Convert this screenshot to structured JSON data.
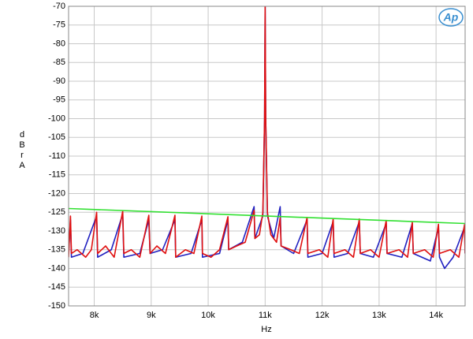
{
  "chart_data": {
    "type": "line",
    "logo": "Ap",
    "xlabel": "Hz",
    "ylabel": "dBr A",
    "xlim": [
      7550,
      14510
    ],
    "ylim": [
      -150,
      -70
    ],
    "xticks": [
      {
        "value": 8000,
        "label": "8k"
      },
      {
        "value": 9000,
        "label": "9k"
      },
      {
        "value": 10000,
        "label": "10k"
      },
      {
        "value": 11000,
        "label": "11k"
      },
      {
        "value": 12000,
        "label": "12k"
      },
      {
        "value": 13000,
        "label": "13k"
      },
      {
        "value": 14000,
        "label": "14k"
      }
    ],
    "yticks": [
      -70,
      -75,
      -80,
      -85,
      -90,
      -95,
      -100,
      -105,
      -110,
      -115,
      -120,
      -125,
      -130,
      -135,
      -140,
      -145,
      -150
    ],
    "grid": true,
    "series": [
      {
        "color": "#2020c0",
        "x": [
          7550,
          7583,
          7600,
          7800,
          8042,
          8060,
          8300,
          8500,
          8520,
          8800,
          8958,
          8980,
          9200,
          9417,
          9430,
          9700,
          9889,
          9900,
          10200,
          10347,
          10360,
          10600,
          10806,
          10820,
          10960,
          10990,
          11000,
          11010,
          11040,
          11150,
          11264,
          11280,
          11500,
          11736,
          11750,
          12000,
          12194,
          12210,
          12450,
          12653,
          12670,
          12900,
          13125,
          13140,
          13400,
          13583,
          13600,
          13900,
          14042,
          14060,
          14150,
          14300,
          14500,
          14510
        ],
        "values": [
          -136,
          -127,
          -137,
          -136,
          -126,
          -137,
          -135,
          -125.5,
          -137,
          -136,
          -127,
          -136,
          -135,
          -127,
          -137,
          -136,
          -127,
          -137,
          -136,
          -127,
          -135,
          -133,
          -123.5,
          -132,
          -126,
          -100,
          -70,
          -100,
          -126,
          -132,
          -123.5,
          -134,
          -136,
          -127,
          -137,
          -136,
          -127.5,
          -137,
          -136,
          -127.5,
          -136,
          -137,
          -128,
          -136,
          -137,
          -128,
          -136,
          -138,
          -129,
          -137,
          -140,
          -137,
          -129,
          -136
        ]
      },
      {
        "color": "#e01010",
        "x": [
          7550,
          7583,
          7600,
          7700,
          7850,
          7950,
          8042,
          8060,
          8200,
          8350,
          8500,
          8520,
          8650,
          8800,
          8958,
          8980,
          9100,
          9250,
          9417,
          9430,
          9600,
          9750,
          9889,
          9900,
          10050,
          10200,
          10347,
          10360,
          10500,
          10650,
          10806,
          10820,
          10900,
          10960,
          10990,
          11000,
          11010,
          11040,
          11100,
          11200,
          11264,
          11280,
          11450,
          11600,
          11736,
          11750,
          11950,
          12100,
          12194,
          12210,
          12400,
          12550,
          12653,
          12670,
          12850,
          13000,
          13125,
          13140,
          13350,
          13500,
          13583,
          13600,
          13800,
          13950,
          14042,
          14060,
          14250,
          14400,
          14500,
          14510
        ],
        "values": [
          -137,
          -126,
          -136,
          -135,
          -137,
          -135,
          -125,
          -136,
          -134,
          -137,
          -124.7,
          -136,
          -135,
          -137,
          -125.8,
          -136,
          -134,
          -136,
          -125.8,
          -137,
          -135,
          -136,
          -126,
          -136,
          -137,
          -135,
          -126.2,
          -135,
          -134,
          -133,
          -124.5,
          -132,
          -131,
          -125,
          -100,
          -70,
          -100,
          -125,
          -131,
          -133,
          -126.5,
          -134,
          -135,
          -136,
          -126.4,
          -136,
          -135,
          -137,
          -126.8,
          -136,
          -135,
          -137,
          -126.8,
          -136,
          -135,
          -137,
          -127.2,
          -136,
          -135,
          -137,
          -127.6,
          -136,
          -135,
          -137,
          -128.2,
          -136,
          -135,
          -137,
          -128.3,
          -136
        ]
      },
      {
        "color": "#30e030",
        "x": [
          7550,
          14510
        ],
        "values": [
          -124,
          -128
        ]
      }
    ]
  }
}
